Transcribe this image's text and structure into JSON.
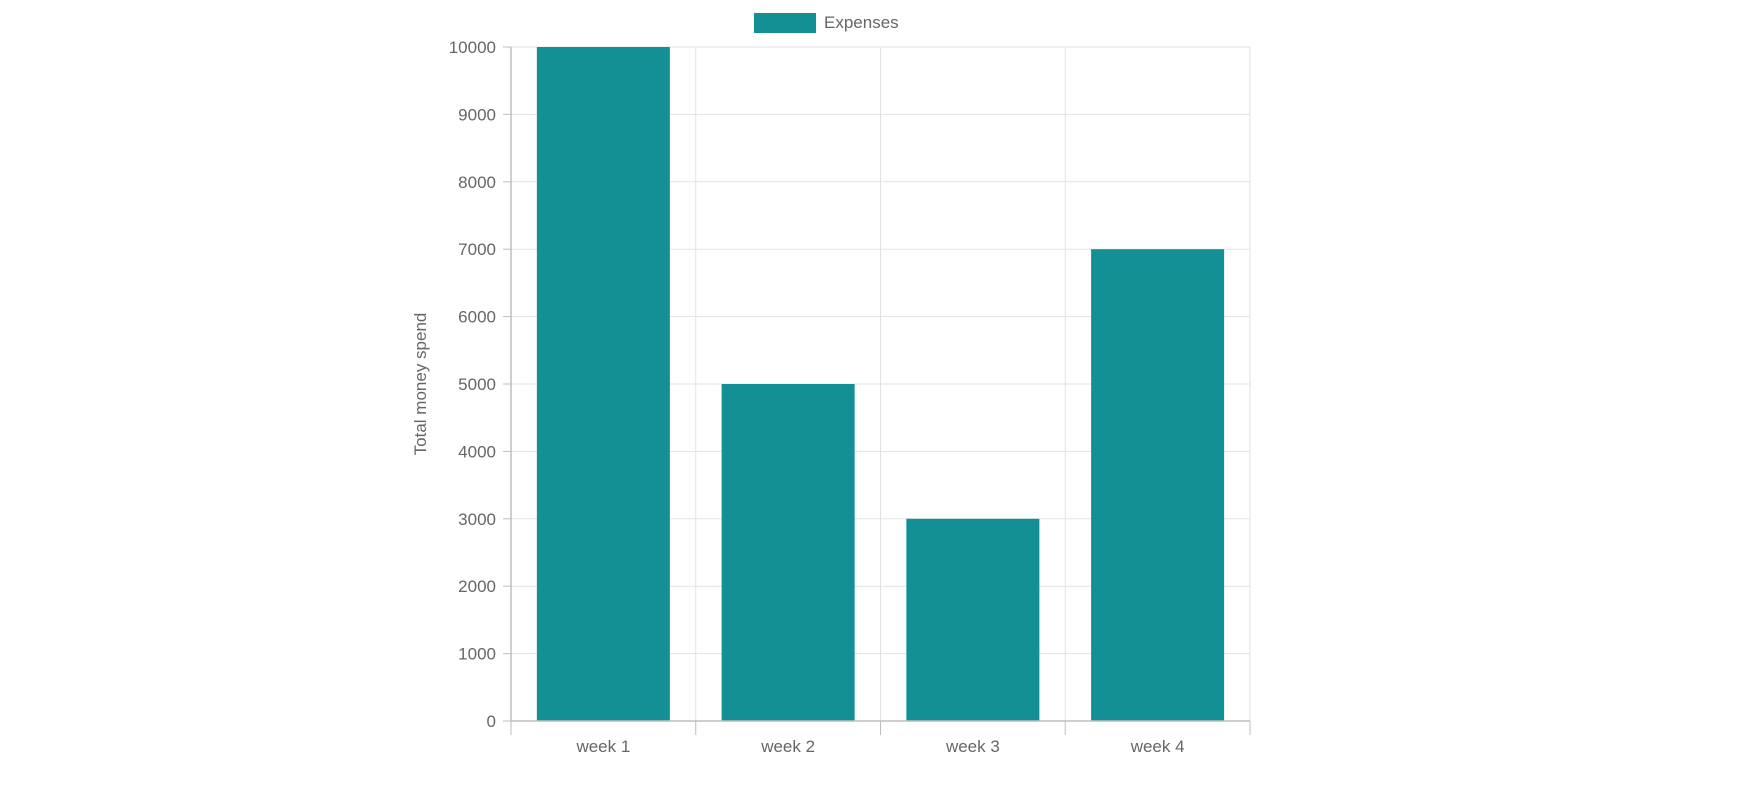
{
  "chart_data": {
    "type": "bar",
    "categories": [
      "week 1",
      "week 2",
      "week 3",
      "week 4"
    ],
    "series": [
      {
        "name": "Expenses",
        "values": [
          10000,
          5000,
          3000,
          7000
        ],
        "color": "#138f96"
      }
    ],
    "title": "",
    "xlabel": "",
    "ylabel": "Total money spend",
    "ylim": [
      0,
      10000
    ],
    "y_ticks": [
      "0",
      "1000",
      "2000",
      "3000",
      "4000",
      "5000",
      "6000",
      "7000",
      "8000",
      "9000",
      "10000"
    ],
    "grid": true,
    "legend": "top-center"
  }
}
